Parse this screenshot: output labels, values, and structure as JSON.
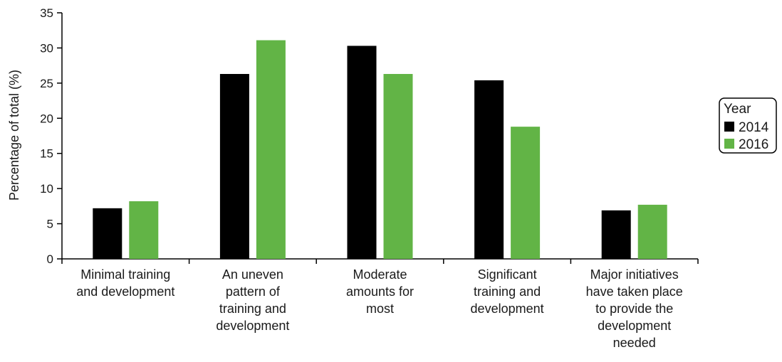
{
  "chart_data": {
    "type": "bar",
    "title": "",
    "xlabel": "",
    "ylabel": "Percentage of total (%)",
    "ylim": [
      0,
      35
    ],
    "yticks": [
      0,
      5,
      10,
      15,
      20,
      25,
      30,
      35
    ],
    "grid": false,
    "legend": {
      "title": "Year",
      "placement": "right"
    },
    "categories": [
      [
        "Minimal training",
        "and development"
      ],
      [
        "An uneven",
        "pattern of",
        "training and",
        "development"
      ],
      [
        "Moderate",
        "amounts for",
        "most"
      ],
      [
        "Significant",
        "training and",
        "development"
      ],
      [
        "Major initiatives",
        "have taken place",
        "to provide the",
        "development",
        "needed"
      ]
    ],
    "series": [
      {
        "name": "2014",
        "color": "#000000",
        "values": [
          7.2,
          26.3,
          30.3,
          25.4,
          6.9
        ]
      },
      {
        "name": "2016",
        "color": "#62b446",
        "values": [
          8.2,
          31.1,
          26.3,
          18.8,
          7.7
        ]
      }
    ]
  }
}
